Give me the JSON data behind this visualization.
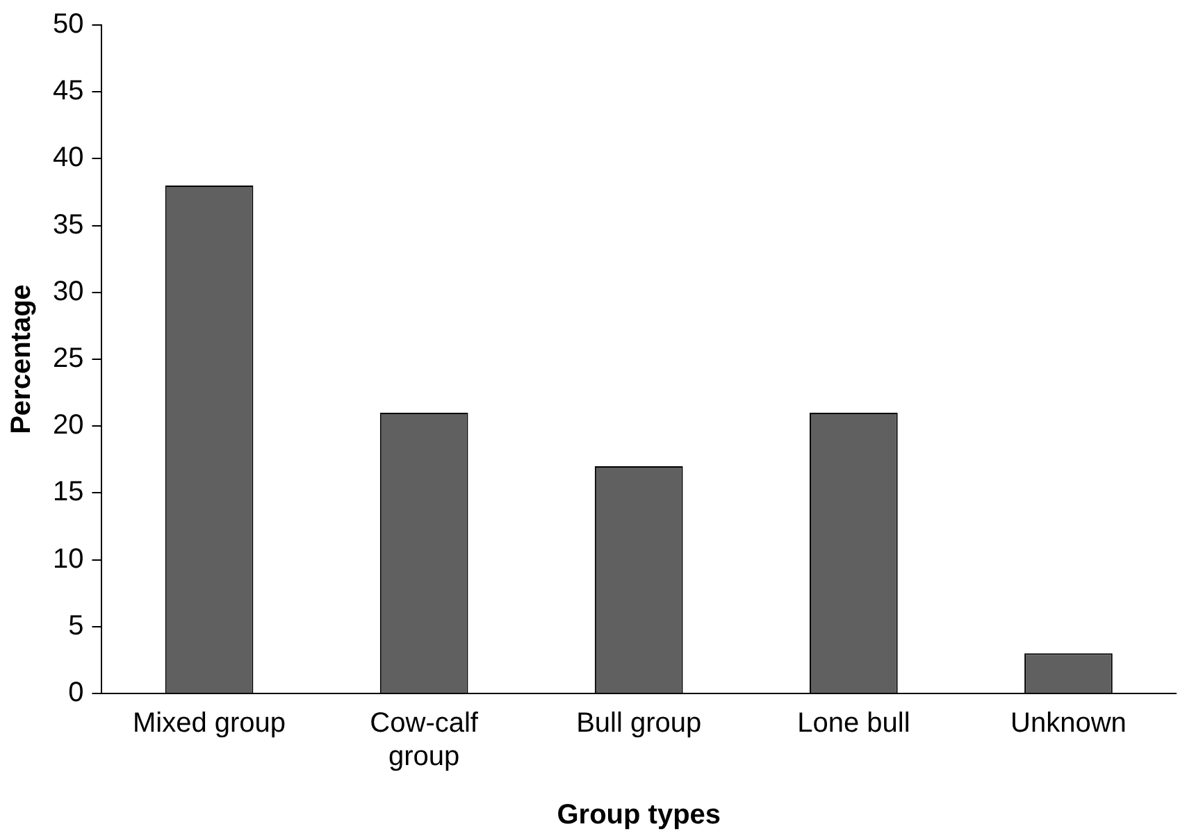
{
  "chart_data": {
    "type": "bar",
    "xlabel": "Group types",
    "ylabel": "Percentage",
    "categories": [
      "Mixed group",
      "Cow-calf group",
      "Bull group",
      "Lone bull",
      "Unknown"
    ],
    "values": [
      38,
      21,
      17,
      21,
      3
    ],
    "color": "#606060",
    "ylim": [
      0,
      50
    ],
    "yticks": [
      0,
      5,
      10,
      15,
      20,
      25,
      30,
      35,
      40,
      45,
      50
    ],
    "grid": false,
    "legend": false
  }
}
